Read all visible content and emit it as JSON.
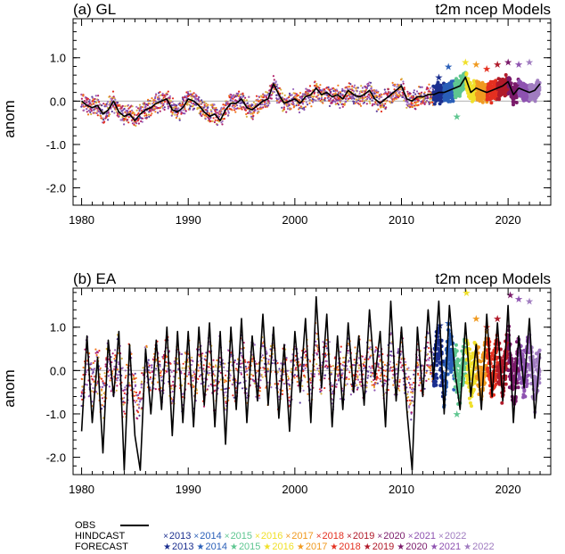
{
  "chart_data": [
    {
      "type": "line",
      "panel_label": "(a) GL",
      "title_right": "t2m ncep Models",
      "ylabel": "anom",
      "xlim": [
        1979.2,
        2024.0
      ],
      "ylim": [
        -2.4,
        1.9
      ],
      "xticks": [
        1980,
        1990,
        2000,
        2010,
        2020
      ],
      "yticks": [
        1.0,
        0.0,
        -1.0,
        -2.0
      ],
      "ytick_labels": [
        "1.0",
        "0.0",
        "-1.0",
        "-2.0"
      ],
      "zero_line": true,
      "obs": {
        "x": [
          1980.0,
          1980.5,
          1981.0,
          1981.5,
          1982.0,
          1982.5,
          1983.0,
          1983.5,
          1984.0,
          1984.5,
          1985.0,
          1985.5,
          1986.0,
          1986.5,
          1987.0,
          1987.5,
          1988.0,
          1988.5,
          1989.0,
          1989.5,
          1990.0,
          1990.5,
          1991.0,
          1991.5,
          1992.0,
          1992.5,
          1993.0,
          1993.5,
          1994.0,
          1994.5,
          1995.0,
          1995.5,
          1996.0,
          1996.5,
          1997.0,
          1997.5,
          1998.0,
          1998.5,
          1999.0,
          1999.5,
          2000.0,
          2000.5,
          2001.0,
          2001.5,
          2002.0,
          2002.5,
          2003.0,
          2003.5,
          2004.0,
          2004.5,
          2005.0,
          2005.5,
          2006.0,
          2006.5,
          2007.0,
          2007.5,
          2008.0,
          2008.5,
          2009.0,
          2009.5,
          2010.0,
          2010.5,
          2011.0,
          2011.5,
          2012.0,
          2012.5,
          2013.0,
          2013.5,
          2014.0,
          2014.5,
          2015.0,
          2015.5,
          2016.0,
          2016.5,
          2017.0,
          2017.5,
          2018.0,
          2018.5,
          2019.0,
          2019.5,
          2020.0,
          2020.5,
          2021.0,
          2021.5,
          2022.0,
          2022.5,
          2023.0
        ],
        "y": [
          0.0,
          -0.1,
          -0.15,
          -0.1,
          -0.3,
          -0.2,
          0.0,
          -0.25,
          -0.35,
          -0.3,
          -0.45,
          -0.3,
          -0.2,
          -0.15,
          -0.05,
          0.0,
          0.05,
          -0.2,
          -0.25,
          -0.15,
          0.05,
          0.0,
          -0.1,
          -0.25,
          -0.35,
          -0.3,
          -0.45,
          -0.2,
          -0.05,
          -0.05,
          0.05,
          -0.15,
          -0.2,
          -0.1,
          0.0,
          0.05,
          0.4,
          0.15,
          -0.05,
          0.0,
          0.05,
          -0.05,
          0.1,
          0.15,
          0.3,
          0.15,
          0.2,
          0.1,
          0.15,
          0.05,
          0.25,
          0.15,
          0.1,
          0.15,
          0.25,
          0.05,
          -0.05,
          0.05,
          0.15,
          0.25,
          0.35,
          0.05,
          0.0,
          0.1,
          0.1,
          0.15,
          0.15,
          0.2,
          0.2,
          0.25,
          0.3,
          0.35,
          0.55,
          0.2,
          0.3,
          0.25,
          0.2,
          0.25,
          0.3,
          0.35,
          0.45,
          0.15,
          0.3,
          0.25,
          0.2,
          0.25,
          0.4
        ]
      },
      "hindcast_spread": 0.22,
      "forecast_points": [
        {
          "year": "2013",
          "x": 2013.5,
          "y": 0.55
        },
        {
          "year": "2014",
          "x": 2014.4,
          "y": 0.8
        },
        {
          "year": "2015",
          "x": 2015.2,
          "y": -0.35
        },
        {
          "year": "2016",
          "x": 2016.0,
          "y": 0.9
        },
        {
          "year": "2017",
          "x": 2017.0,
          "y": 0.85
        },
        {
          "year": "2018",
          "x": 2018.0,
          "y": 0.75
        },
        {
          "year": "2019",
          "x": 2019.0,
          "y": 0.85
        },
        {
          "year": "2020",
          "x": 2020.0,
          "y": 0.9
        },
        {
          "year": "2021",
          "x": 2021.0,
          "y": 0.85
        },
        {
          "year": "2022",
          "x": 2022.0,
          "y": 0.9
        }
      ]
    },
    {
      "type": "line",
      "panel_label": "(b) EA",
      "title_right": "t2m ncep Models",
      "ylabel": "anom",
      "xlim": [
        1979.2,
        2024.0
      ],
      "ylim": [
        -2.4,
        1.9
      ],
      "xticks": [
        1980,
        1990,
        2000,
        2010,
        2020
      ],
      "yticks": [
        1.0,
        0.0,
        -1.0,
        -2.0
      ],
      "ytick_labels": [
        "1.0",
        "0.0",
        "-1.0",
        "-2.0"
      ],
      "zero_line": true,
      "obs": {
        "x": [
          1980.0,
          1980.5,
          1981.0,
          1981.5,
          1982.0,
          1982.5,
          1983.0,
          1983.5,
          1984.0,
          1984.5,
          1985.0,
          1985.5,
          1986.0,
          1986.5,
          1987.0,
          1987.5,
          1988.0,
          1988.5,
          1989.0,
          1989.5,
          1990.0,
          1990.5,
          1991.0,
          1991.5,
          1992.0,
          1992.5,
          1993.0,
          1993.5,
          1994.0,
          1994.5,
          1995.0,
          1995.5,
          1996.0,
          1996.5,
          1997.0,
          1997.5,
          1998.0,
          1998.5,
          1999.0,
          1999.5,
          2000.0,
          2000.5,
          2001.0,
          2001.5,
          2002.0,
          2002.5,
          2003.0,
          2003.5,
          2004.0,
          2004.5,
          2005.0,
          2005.5,
          2006.0,
          2006.5,
          2007.0,
          2007.5,
          2008.0,
          2008.5,
          2009.0,
          2009.5,
          2010.0,
          2010.5,
          2011.0,
          2011.5,
          2012.0,
          2012.5,
          2013.0,
          2013.5,
          2014.0,
          2014.5,
          2015.0,
          2015.5,
          2016.0,
          2016.5,
          2017.0,
          2017.5,
          2018.0,
          2018.5,
          2019.0,
          2019.5,
          2020.0,
          2020.5,
          2021.0,
          2021.5,
          2022.0,
          2022.5,
          2023.0
        ],
        "y": [
          -1.4,
          0.8,
          -1.2,
          0.3,
          -1.9,
          0.7,
          -0.6,
          0.9,
          -2.3,
          0.6,
          -1.5,
          -2.3,
          0.5,
          -1.0,
          0.7,
          -0.9,
          1.0,
          -1.5,
          0.9,
          -1.2,
          0.9,
          -1.3,
          1.0,
          -0.8,
          1.1,
          -1.3,
          0.9,
          -1.7,
          1.0,
          -0.9,
          1.2,
          -1.2,
          0.8,
          -0.7,
          1.3,
          -0.8,
          1.0,
          -1.1,
          0.6,
          -1.4,
          0.9,
          -0.5,
          1.2,
          -1.2,
          1.7,
          -0.4,
          1.3,
          -1.3,
          0.8,
          -0.9,
          1.1,
          -0.5,
          0.8,
          -0.8,
          1.4,
          -0.2,
          0.9,
          -1.3,
          1.6,
          -0.7,
          1.0,
          -0.9,
          -2.3,
          1.0,
          -0.6,
          1.4,
          -0.2,
          1.6,
          -1.0,
          1.5,
          0.0,
          -0.9,
          1.1,
          -0.6,
          0.6,
          -0.9,
          1.3,
          -0.6,
          1.1,
          -0.7,
          1.5,
          -1.2,
          0.8,
          -0.4,
          1.2,
          -1.1,
          0.4
        ]
      },
      "hindcast_spread": 0.55,
      "forecast_points": [
        {
          "year": "2013",
          "x": 2013.6,
          "y": 1.05
        },
        {
          "year": "2014",
          "x": 2014.4,
          "y": 1.1
        },
        {
          "year": "2015",
          "x": 2015.2,
          "y": -1.0
        },
        {
          "year": "2016",
          "x": 2016.1,
          "y": 1.8
        },
        {
          "year": "2017",
          "x": 2017.0,
          "y": 1.2
        },
        {
          "year": "2018",
          "x": 2018.0,
          "y": 1.0
        },
        {
          "year": "2019",
          "x": 2019.0,
          "y": 1.2
        },
        {
          "year": "2020",
          "x": 2020.2,
          "y": 1.75
        },
        {
          "year": "2021",
          "x": 2021.0,
          "y": 1.65
        },
        {
          "year": "2022",
          "x": 2022.0,
          "y": 1.6
        }
      ]
    }
  ],
  "legend": {
    "obs_label": "OBS",
    "hindcast_label": "HINDCAST",
    "forecast_label": "FORECAST",
    "hindcast_marker": "×",
    "forecast_marker": "★",
    "years": [
      "2013",
      "2014",
      "2015",
      "2016",
      "2017",
      "2018",
      "2019",
      "2020",
      "2021",
      "2022"
    ],
    "year_colors": [
      "#1b2f8f",
      "#2a5fb8",
      "#5ec690",
      "#f0e02a",
      "#f09a20",
      "#e43020",
      "#b01a2a",
      "#7a1a6a",
      "#8e52b0",
      "#a07cc0"
    ]
  },
  "colors": {
    "obs_line": "#000000",
    "zero_line": "#bfbfbf",
    "scatter_palette": [
      "#8e52b0",
      "#a070c0",
      "#f07a20",
      "#e43020",
      "#b0206a",
      "#5b3c9a",
      "#d8b040"
    ]
  }
}
